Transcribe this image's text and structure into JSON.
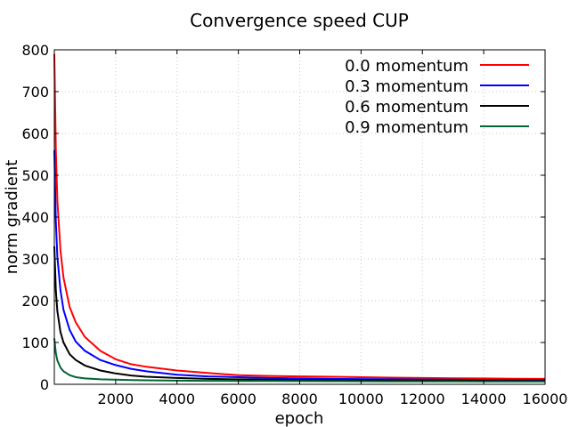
{
  "chart_data": {
    "type": "line",
    "title": "Convergence speed CUP",
    "xlabel": "epoch",
    "ylabel": "norm gradient",
    "xlim": [
      0,
      16000
    ],
    "ylim": [
      0,
      800
    ],
    "xticks": [
      2000,
      4000,
      6000,
      8000,
      10000,
      12000,
      14000,
      16000
    ],
    "yticks": [
      0,
      100,
      200,
      300,
      400,
      500,
      600,
      700,
      800
    ],
    "grid": true,
    "legend_position": "top-right",
    "series": [
      {
        "name": "0.0 momentum",
        "color": "#ff0000",
        "x": [
          1,
          50,
          100,
          200,
          300,
          500,
          700,
          1000,
          1500,
          2000,
          2500,
          3000,
          4000,
          5000,
          6000,
          7000,
          8000,
          9000,
          10000,
          11000,
          12000,
          13000,
          14000,
          15000,
          16000
        ],
        "y": [
          790,
          560,
          440,
          320,
          255,
          185,
          148,
          113,
          80,
          60,
          48,
          42,
          33,
          27,
          22,
          20,
          19,
          18,
          17,
          16,
          15,
          14.5,
          14,
          13.5,
          13
        ]
      },
      {
        "name": "0.3 momentum",
        "color": "#0000ff",
        "x": [
          1,
          50,
          100,
          200,
          300,
          500,
          700,
          1000,
          1500,
          2000,
          2500,
          3000,
          4000,
          5000,
          6000,
          7000,
          8000,
          9000,
          10000,
          11000,
          12000,
          13000,
          14000,
          15000,
          16000
        ],
        "y": [
          560,
          390,
          305,
          225,
          178,
          130,
          102,
          80,
          58,
          46,
          37,
          31,
          23,
          19,
          17,
          15,
          14,
          13,
          12.5,
          12,
          11.5,
          11,
          10.5,
          10,
          10
        ]
      },
      {
        "name": "0.6 momentum",
        "color": "#000000",
        "x": [
          1,
          50,
          100,
          200,
          300,
          500,
          700,
          1000,
          1500,
          2000,
          2500,
          3000,
          4000,
          5000,
          6000,
          7000,
          8000,
          9000,
          10000,
          11000,
          12000,
          13000,
          14000,
          15000,
          16000
        ],
        "y": [
          330,
          225,
          175,
          125,
          100,
          72,
          58,
          45,
          33,
          26,
          21,
          18,
          15,
          13,
          12,
          11,
          10.5,
          10,
          9.5,
          9,
          8.8,
          8.6,
          8.4,
          8.2,
          8
        ]
      },
      {
        "name": "0.9 momentum",
        "color": "#006633",
        "x": [
          1,
          50,
          100,
          200,
          300,
          500,
          700,
          1000,
          1500,
          2000,
          2500,
          3000,
          4000,
          5000,
          6000,
          7000,
          8000,
          9000,
          10000,
          11000,
          12000,
          13000,
          14000,
          15000,
          16000
        ],
        "y": [
          110,
          75,
          57,
          40,
          31,
          22,
          17,
          14,
          12,
          11,
          10,
          9.5,
          8.8,
          8.3,
          8,
          7.8,
          7.6,
          7.4,
          7.2,
          7,
          6.9,
          6.8,
          6.7,
          6.6,
          6.5
        ]
      }
    ]
  }
}
